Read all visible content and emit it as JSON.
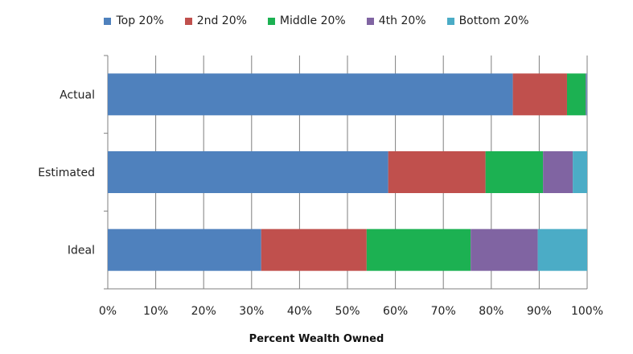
{
  "chart_data": {
    "type": "bar",
    "orientation": "horizontal",
    "stacked": true,
    "categories": [
      "Actual",
      "Estimated",
      "Ideal"
    ],
    "series": [
      {
        "name": "Top 20%",
        "color": "#4f81bd",
        "values": [
          84.5,
          58.5,
          32.0
        ]
      },
      {
        "name": "2nd 20%",
        "color": "#c0504d",
        "values": [
          11.3,
          20.3,
          22.0
        ]
      },
      {
        "name": "Middle 20%",
        "color": "#1cb152",
        "values": [
          3.9,
          12.0,
          21.7
        ]
      },
      {
        "name": "4th 20%",
        "color": "#8064a2",
        "values": [
          0.2,
          6.2,
          14.0
        ]
      },
      {
        "name": "Bottom 20%",
        "color": "#4bacc6",
        "values": [
          0.1,
          3.0,
          10.3
        ]
      }
    ],
    "xlabel": "Percent Wealth Owned",
    "xlim": [
      0,
      100
    ],
    "xticks": [
      "0%",
      "10%",
      "20%",
      "30%",
      "40%",
      "50%",
      "60%",
      "70%",
      "80%",
      "90%",
      "100%"
    ],
    "grid": "vertical",
    "legend_position": "top"
  }
}
